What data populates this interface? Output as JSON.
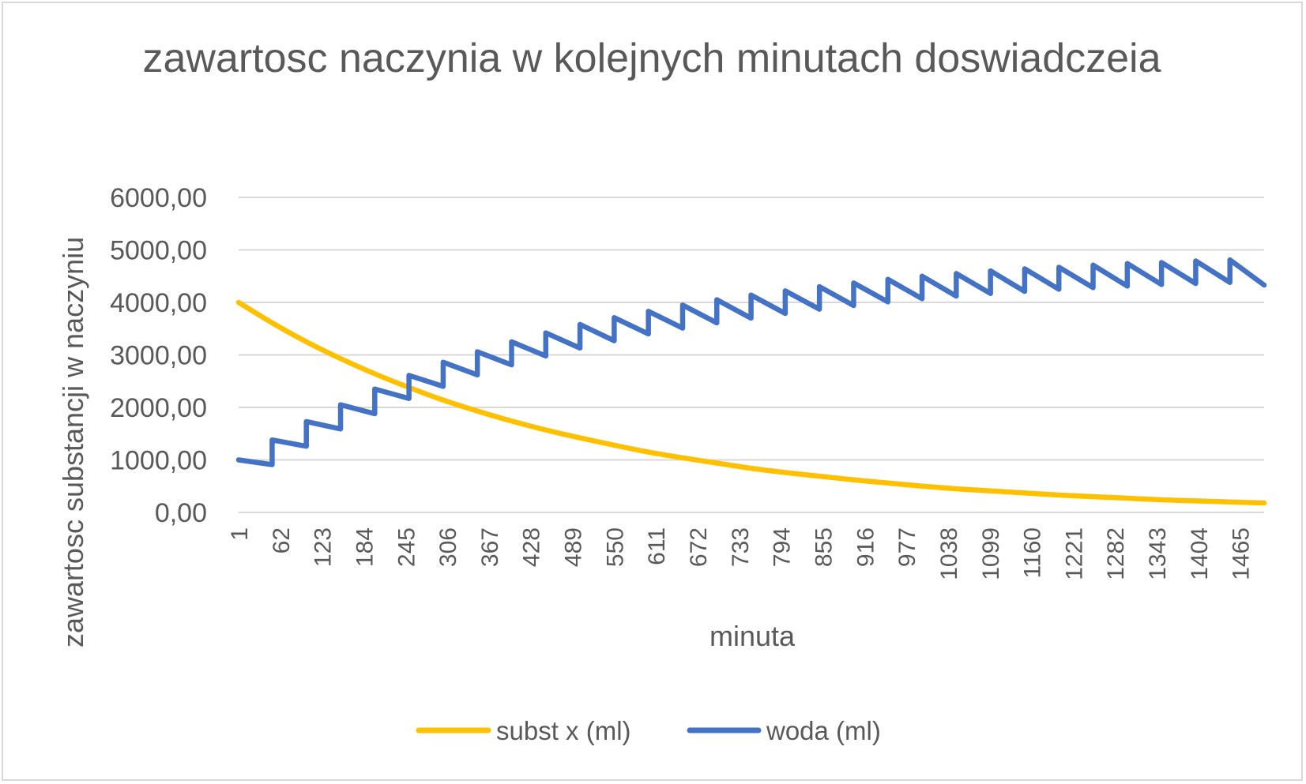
{
  "chart_data": {
    "type": "line",
    "title": "zawartosc naczynia w kolejnych minutach doswiadczeia",
    "xlabel": "minuta",
    "ylabel": "zawartosc substancji w naczyniu",
    "ylim": [
      0,
      6000
    ],
    "y_ticks": [
      "0,00",
      "1000,00",
      "2000,00",
      "3000,00",
      "4000,00",
      "5000,00",
      "6000,00"
    ],
    "x_range": [
      1,
      1500
    ],
    "x_ticks": [
      1,
      62,
      123,
      184,
      245,
      306,
      367,
      428,
      489,
      550,
      611,
      672,
      733,
      794,
      855,
      916,
      977,
      1038,
      1099,
      1160,
      1221,
      1282,
      1343,
      1404,
      1465
    ],
    "grid": true,
    "legend_position": "bottom",
    "series": [
      {
        "name": "subst x (ml)",
        "color": "#FFC000",
        "x": [
          1,
          50,
          100,
          150,
          200,
          250,
          300,
          350,
          400,
          450,
          500,
          550,
          600,
          650,
          700,
          750,
          800,
          850,
          900,
          950,
          1000,
          1050,
          1100,
          1150,
          1200,
          1250,
          1300,
          1350,
          1400,
          1450,
          1500
        ],
        "values": [
          4000,
          3610,
          3250,
          2930,
          2640,
          2380,
          2140,
          1930,
          1740,
          1570,
          1420,
          1280,
          1150,
          1040,
          940,
          840,
          760,
          690,
          620,
          560,
          500,
          450,
          410,
          370,
          330,
          300,
          270,
          240,
          220,
          200,
          180
        ]
      },
      {
        "name": "woda (ml)",
        "color": "#4472C4",
        "x": [
          1,
          50,
          50,
          100,
          100,
          150,
          150,
          200,
          200,
          250,
          250,
          300,
          300,
          350,
          350,
          400,
          400,
          450,
          450,
          500,
          500,
          550,
          550,
          600,
          600,
          650,
          650,
          700,
          700,
          750,
          750,
          800,
          800,
          850,
          850,
          900,
          900,
          950,
          950,
          1000,
          1000,
          1050,
          1050,
          1100,
          1100,
          1150,
          1150,
          1200,
          1200,
          1250,
          1250,
          1300,
          1300,
          1350,
          1350,
          1400,
          1400,
          1450,
          1450,
          1500
        ],
        "values": [
          1000,
          910,
          1380,
          1260,
          1730,
          1590,
          2050,
          1880,
          2350,
          2170,
          2610,
          2400,
          2860,
          2620,
          3060,
          2810,
          3250,
          2980,
          3420,
          3130,
          3580,
          3270,
          3710,
          3400,
          3830,
          3510,
          3950,
          3610,
          4050,
          3700,
          4140,
          3790,
          4220,
          3870,
          4300,
          3940,
          4370,
          4010,
          4440,
          4070,
          4500,
          4120,
          4550,
          4170,
          4600,
          4210,
          4640,
          4250,
          4670,
          4280,
          4710,
          4310,
          4740,
          4340,
          4760,
          4360,
          4790,
          4380,
          4810,
          4330
        ]
      }
    ]
  }
}
